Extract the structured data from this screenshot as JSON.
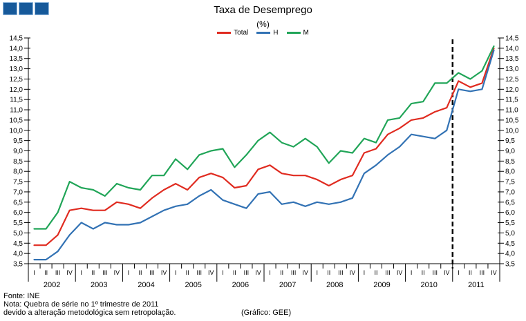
{
  "logo": {
    "square_count": 3,
    "fill": "#16599A",
    "border": "#9CC0E2"
  },
  "header": {
    "title": "Taxa de Desemprego",
    "subtitle": "(%)"
  },
  "legend": [
    {
      "label": "Total",
      "color": "#E02B20"
    },
    {
      "label": "H",
      "color": "#3272B4"
    },
    {
      "label": "M",
      "color": "#21A558"
    }
  ],
  "footer": {
    "fonte": "Fonte: INE",
    "nota_line1": "Nota: Quebra de série no 1º trimestre de 2011",
    "nota_line2": "devido a alteração metodológica sem retropolação.",
    "credit": "(Gráfico: GEE)"
  },
  "chart_data": {
    "type": "line",
    "title": "Taxa de Desemprego",
    "unit": "(%)",
    "years": [
      "2002",
      "2003",
      "2004",
      "2005",
      "2006",
      "2007",
      "2008",
      "2009",
      "2010",
      "2011"
    ],
    "quarter_labels": [
      "I",
      "II",
      "III",
      "IV"
    ],
    "ylim": [
      3.5,
      14.5
    ],
    "ytick_step": 0.5,
    "ytick_labels": [
      "3,5",
      "4,0",
      "4,5",
      "5,0",
      "5,5",
      "6,0",
      "6,5",
      "7,0",
      "7,5",
      "8,0",
      "8,5",
      "9,0",
      "9,5",
      "10,0",
      "10,5",
      "11,0",
      "11,5",
      "12,0",
      "12,5",
      "13,0",
      "13,5",
      "14,0",
      "14,5"
    ],
    "grid": false,
    "legend_position": "top",
    "break_line": {
      "between": "2010 IV",
      "and": "2011 I",
      "style": "dashed",
      "boundary_index": 36
    },
    "series": [
      {
        "name": "Total",
        "color": "#E02B20",
        "values": [
          4.4,
          4.4,
          4.9,
          6.1,
          6.2,
          6.1,
          6.1,
          6.5,
          6.4,
          6.2,
          6.7,
          7.1,
          7.4,
          7.1,
          7.7,
          7.9,
          7.7,
          7.2,
          7.3,
          8.1,
          8.3,
          7.9,
          7.8,
          7.8,
          7.6,
          7.3,
          7.6,
          7.8,
          8.9,
          9.1,
          9.8,
          10.1,
          10.5,
          10.6,
          10.9,
          11.1,
          12.4,
          12.1,
          12.3,
          14.0
        ]
      },
      {
        "name": "H",
        "color": "#3272B4",
        "values": [
          3.7,
          3.7,
          4.1,
          4.9,
          5.5,
          5.2,
          5.5,
          5.4,
          5.4,
          5.5,
          5.8,
          6.1,
          6.3,
          6.4,
          6.8,
          7.1,
          6.6,
          6.4,
          6.2,
          6.9,
          7.0,
          6.4,
          6.5,
          6.3,
          6.5,
          6.4,
          6.5,
          6.7,
          7.9,
          8.3,
          8.8,
          9.2,
          9.8,
          9.7,
          9.6,
          10.0,
          12.0,
          11.9,
          12.0,
          13.9
        ]
      },
      {
        "name": "M",
        "color": "#21A558",
        "values": [
          5.2,
          5.2,
          6.0,
          7.5,
          7.2,
          7.1,
          6.8,
          7.4,
          7.2,
          7.1,
          7.8,
          7.8,
          8.6,
          8.1,
          8.8,
          9.0,
          9.1,
          8.2,
          8.8,
          9.5,
          9.9,
          9.4,
          9.2,
          9.6,
          9.2,
          8.4,
          9.0,
          8.9,
          9.6,
          9.4,
          10.5,
          10.6,
          11.3,
          11.4,
          12.3,
          12.3,
          12.8,
          12.5,
          12.9,
          14.1
        ]
      }
    ]
  }
}
